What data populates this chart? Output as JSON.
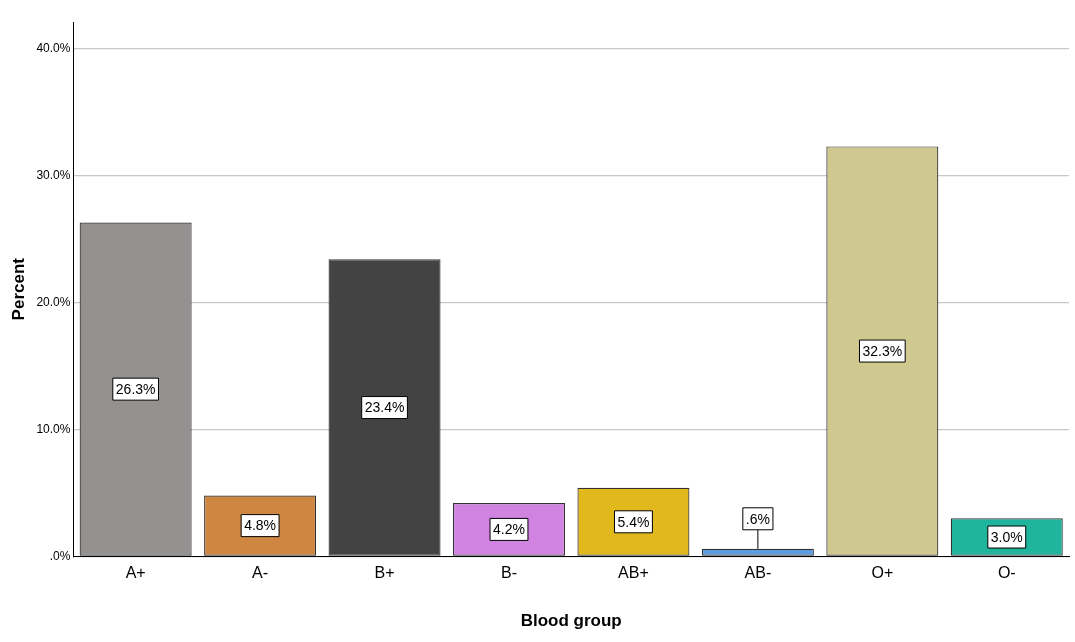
{
  "chart_data": {
    "type": "bar",
    "xlabel": "Blood group",
    "ylabel": "Percent",
    "categories": [
      "A+",
      "A-",
      "B+",
      "B-",
      "AB+",
      "AB-",
      "O+",
      "O-"
    ],
    "values": [
      26.3,
      4.8,
      23.4,
      4.2,
      5.4,
      0.6,
      32.3,
      3.0
    ],
    "colors": [
      "#959190",
      "#cf8640",
      "#434343",
      "#d083e0",
      "#e2b91c",
      "#5b9de0",
      "#d0c98f",
      "#1fb49c"
    ],
    "value_labels": [
      "26.3%",
      "4.8%",
      "23.4%",
      "4.2%",
      "5.4%",
      ".6%",
      "32.3%",
      "3.0%"
    ],
    "ylim": [
      0,
      42.1
    ],
    "yticks": [
      {
        "value": 0,
        "label": ".0%"
      },
      {
        "value": 10,
        "label": "10.0%"
      },
      {
        "value": 20,
        "label": "20.0%"
      },
      {
        "value": 30,
        "label": "30.0%"
      },
      {
        "value": 40,
        "label": "40.0%"
      }
    ],
    "grid": "y",
    "legend": false
  }
}
